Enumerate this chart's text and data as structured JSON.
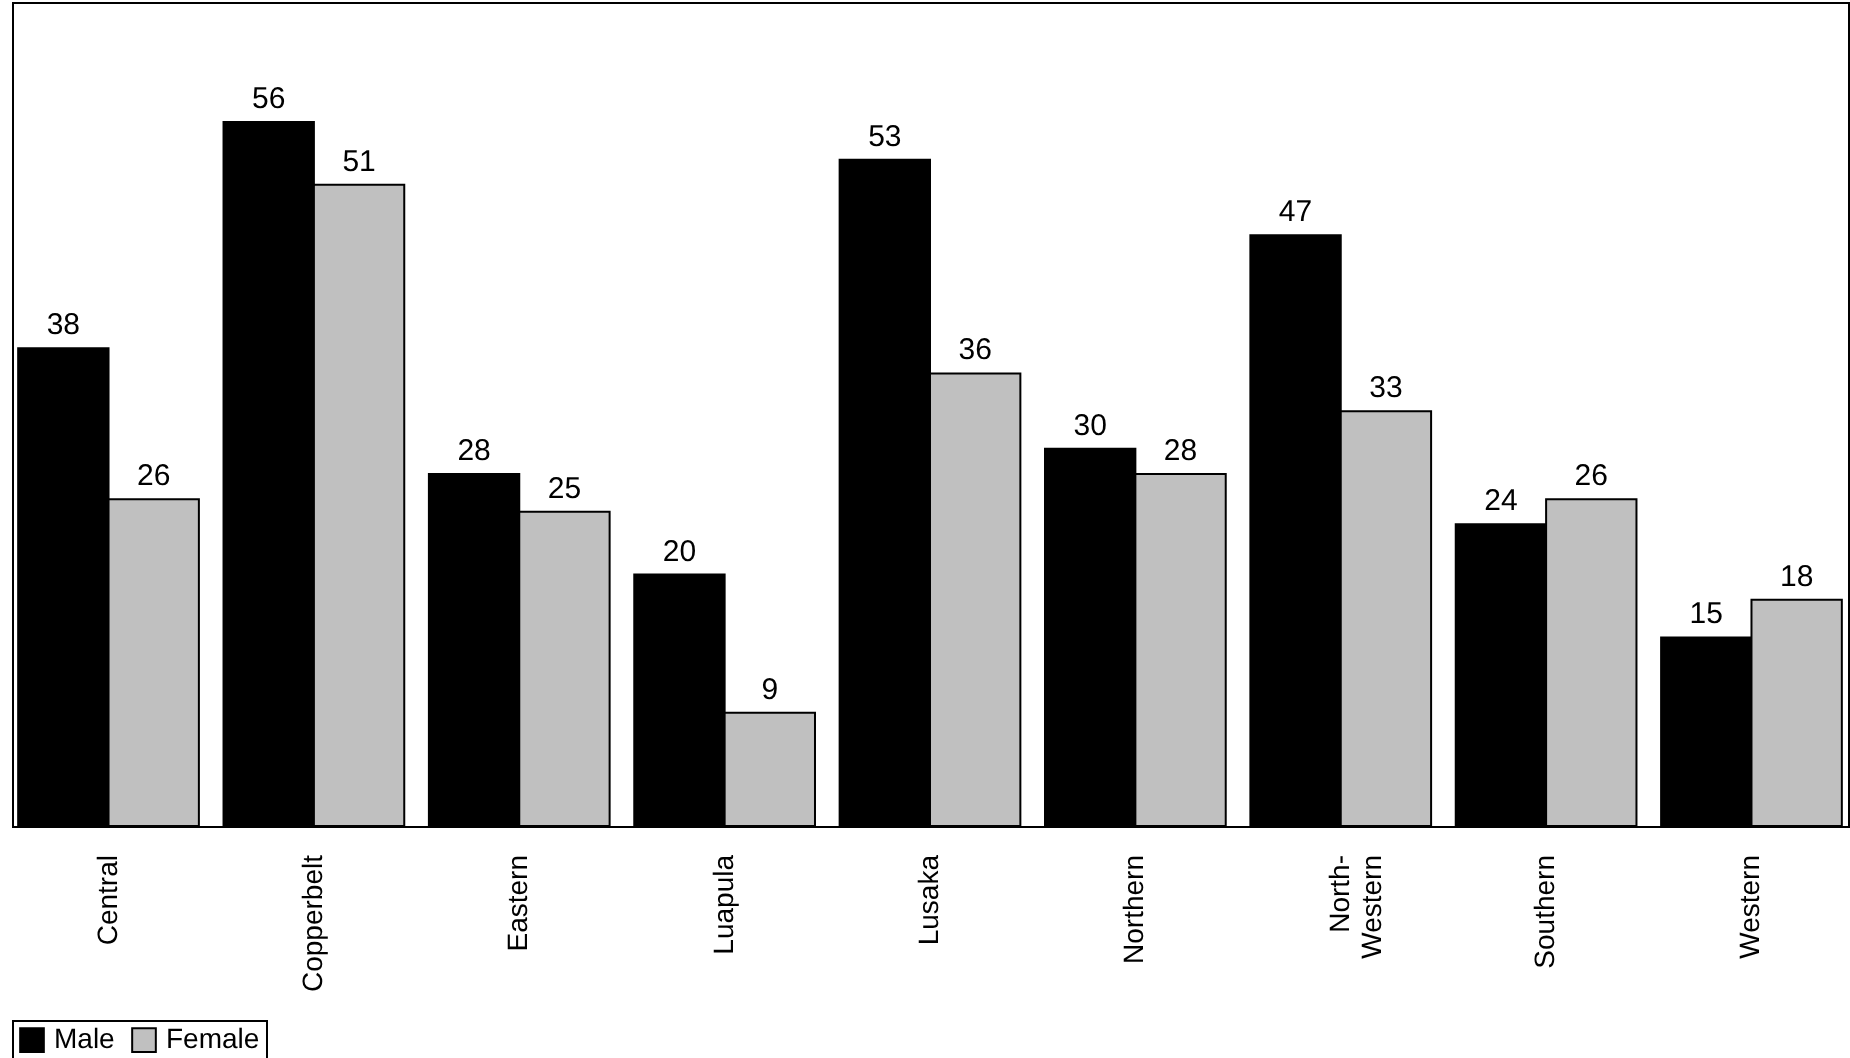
{
  "chart_data": {
    "type": "bar",
    "categories": [
      "Central",
      "Copperbelt",
      "Eastern",
      "Luapula",
      "Lusaka",
      "Northern",
      "North-Western",
      "Southern",
      "Western"
    ],
    "series": [
      {
        "name": "Male",
        "color": "#000000",
        "values": [
          38,
          56,
          28,
          20,
          53,
          30,
          47,
          24,
          15
        ]
      },
      {
        "name": "Female",
        "color": "#c0c0c0",
        "values": [
          26,
          51,
          25,
          9,
          36,
          28,
          33,
          26,
          18
        ]
      }
    ],
    "data_labels": true,
    "legend": "bottom",
    "grid": false,
    "tick_labels": "x"
  }
}
